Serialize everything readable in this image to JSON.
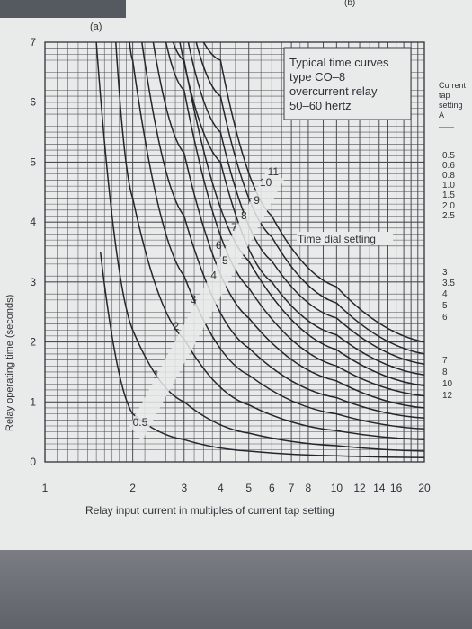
{
  "figure": {
    "panel_label": "(a)",
    "corner_label": "(b)",
    "box_text": [
      "Typical time curves",
      "type CO–8",
      "overcurrent relay",
      "50–60 hertz"
    ],
    "side_header": [
      "Current",
      "tap",
      "setting",
      "A"
    ],
    "side_taps": [
      "0.5",
      "0.6",
      "0.8",
      "1.0",
      "1.5",
      "2.0",
      "2.5",
      "3",
      "3.5",
      "4",
      "5",
      "6",
      "7",
      "8",
      "10",
      "12"
    ],
    "dial_setting_label": "Time dial setting"
  },
  "chart_data": {
    "type": "line",
    "xlabel": "Relay input current in multiples of current tap setting",
    "ylabel": "Relay operating time (seconds)",
    "xlim": [
      1,
      20
    ],
    "ylim": [
      0,
      7
    ],
    "x_ticks": [
      "1",
      "2",
      "3",
      "4",
      "5",
      "6",
      "7",
      "8",
      "10",
      "12",
      "14",
      "16",
      "20"
    ],
    "x_tick_values": [
      1,
      2,
      3,
      4,
      5,
      6,
      7,
      8,
      10,
      12,
      14,
      16,
      20
    ],
    "y_ticks": [
      "0",
      "1",
      "2",
      "3",
      "4",
      "5",
      "6",
      "7"
    ],
    "y_tick_values": [
      0,
      1,
      2,
      3,
      4,
      5,
      6,
      7
    ],
    "x_scale": "log",
    "grid": true,
    "series": [
      {
        "name": "0.5",
        "points": [
          [
            1.55,
            3.5
          ],
          [
            2,
            0.8
          ],
          [
            3,
            0.37
          ],
          [
            5,
            0.18
          ],
          [
            10,
            0.1
          ],
          [
            20,
            0.07
          ]
        ]
      },
      {
        "name": "1",
        "points": [
          [
            1.5,
            7
          ],
          [
            2,
            2.2
          ],
          [
            3,
            1.0
          ],
          [
            5,
            0.48
          ],
          [
            10,
            0.27
          ],
          [
            20,
            0.18
          ]
        ]
      },
      {
        "name": "2",
        "points": [
          [
            1.75,
            7
          ],
          [
            2,
            4.4
          ],
          [
            3,
            2.05
          ],
          [
            5,
            0.95
          ],
          [
            10,
            0.52
          ],
          [
            20,
            0.37
          ]
        ]
      },
      {
        "name": "3",
        "points": [
          [
            1.95,
            7
          ],
          [
            2,
            6.7
          ],
          [
            3,
            3.1
          ],
          [
            5,
            1.45
          ],
          [
            10,
            0.8
          ],
          [
            20,
            0.55
          ]
        ]
      },
      {
        "name": "4",
        "points": [
          [
            2.15,
            7
          ],
          [
            3,
            4.1
          ],
          [
            5,
            1.9
          ],
          [
            10,
            1.07
          ],
          [
            20,
            0.73
          ]
        ]
      },
      {
        "name": "5",
        "points": [
          [
            2.35,
            7
          ],
          [
            3,
            5.15
          ],
          [
            5,
            2.4
          ],
          [
            10,
            1.35
          ],
          [
            20,
            0.9
          ]
        ]
      },
      {
        "name": "6",
        "points": [
          [
            2.6,
            7
          ],
          [
            3,
            6.2
          ],
          [
            5,
            2.9
          ],
          [
            10,
            1.6
          ],
          [
            20,
            1.1
          ]
        ]
      },
      {
        "name": "7",
        "points": [
          [
            2.75,
            7
          ],
          [
            3,
            6.7
          ],
          [
            5,
            3.35
          ],
          [
            10,
            1.87
          ],
          [
            20,
            1.27
          ]
        ]
      },
      {
        "name": "8",
        "points": [
          [
            2.9,
            7
          ],
          [
            4,
            5.0
          ],
          [
            6,
            3.0
          ],
          [
            10,
            2.12
          ],
          [
            20,
            1.45
          ]
        ]
      },
      {
        "name": "9",
        "points": [
          [
            3.1,
            7
          ],
          [
            4,
            5.5
          ],
          [
            6,
            3.35
          ],
          [
            10,
            2.4
          ],
          [
            20,
            1.63
          ]
        ]
      },
      {
        "name": "10",
        "points": [
          [
            3.3,
            7
          ],
          [
            4,
            6.1
          ],
          [
            6,
            3.75
          ],
          [
            10,
            2.65
          ],
          [
            20,
            1.8
          ]
        ]
      },
      {
        "name": "11",
        "points": [
          [
            3.5,
            7
          ],
          [
            4,
            6.7
          ],
          [
            6,
            4.1
          ],
          [
            10,
            2.92
          ],
          [
            20,
            2.0
          ]
        ]
      }
    ],
    "curve_labels": [
      {
        "text": "0.5",
        "x": 2.0,
        "y": 0.6
      },
      {
        "text": "1",
        "x": 2.35,
        "y": 1.4
      },
      {
        "text": "2",
        "x": 2.75,
        "y": 2.2
      },
      {
        "text": "3",
        "x": 3.15,
        "y": 2.65
      },
      {
        "text": "4",
        "x": 3.7,
        "y": 3.05
      },
      {
        "text": "5",
        "x": 4.05,
        "y": 3.3
      },
      {
        "text": "6",
        "x": 3.85,
        "y": 3.55
      },
      {
        "text": "7",
        "x": 4.35,
        "y": 3.85
      },
      {
        "text": "8",
        "x": 4.7,
        "y": 4.05
      },
      {
        "text": "9",
        "x": 5.2,
        "y": 4.3
      },
      {
        "text": "10",
        "x": 5.45,
        "y": 4.6
      },
      {
        "text": "11",
        "x": 5.8,
        "y": 4.78
      }
    ]
  }
}
